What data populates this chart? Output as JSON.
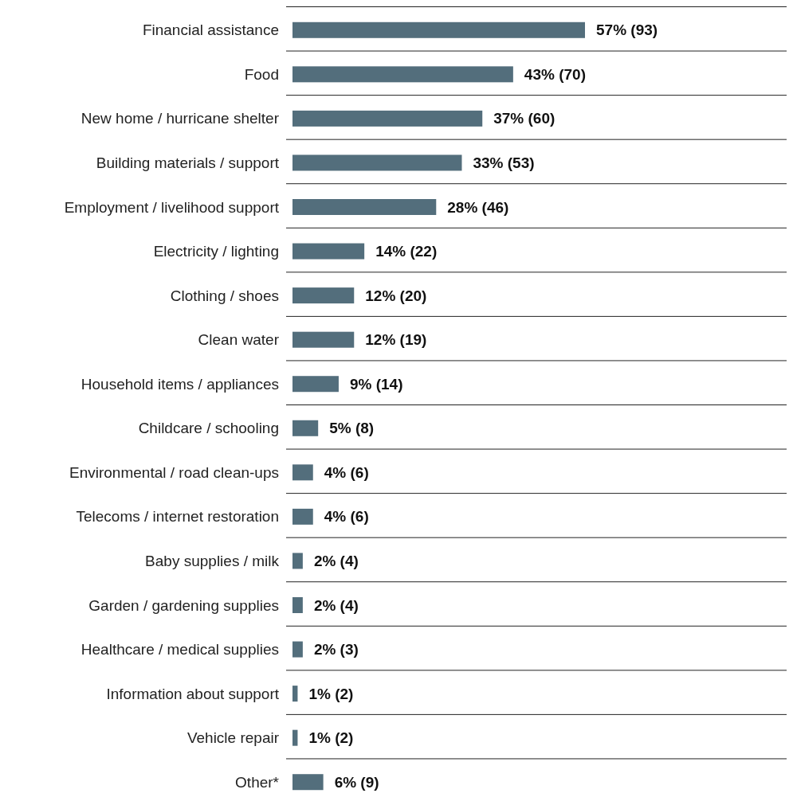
{
  "chart_data": {
    "type": "bar",
    "orientation": "horizontal",
    "categories": [
      "Financial assistance",
      "Food",
      "New home / hurricane shelter",
      "Building materials / support",
      "Employment / livelihood support",
      "Electricity / lighting",
      "Clothing / shoes",
      "Clean water",
      "Household items / appliances",
      "Childcare / schooling",
      "Environmental / road clean-ups",
      "Telecoms / internet restoration",
      "Baby supplies / milk",
      "Garden / gardening supplies",
      "Healthcare / medical supplies",
      "Information about support",
      "Vehicle repair",
      "Other*"
    ],
    "values": [
      57,
      43,
      37,
      33,
      28,
      14,
      12,
      12,
      9,
      5,
      4,
      4,
      2,
      2,
      2,
      1,
      1,
      6
    ],
    "value_labels": [
      "57% (93)",
      "43% (70)",
      "37% (60)",
      "33% (53)",
      "28% (46)",
      "14% (22)",
      "12% (20)",
      "12% (19)",
      "9% (14)",
      "5% (8)",
      "4% (6)",
      "4% (6)",
      "2% (4)",
      "2% (4)",
      "2% (3)",
      "1% (2)",
      "1% (2)",
      "6% (9)"
    ],
    "color": "#536e7c",
    "grid": "y"
  }
}
